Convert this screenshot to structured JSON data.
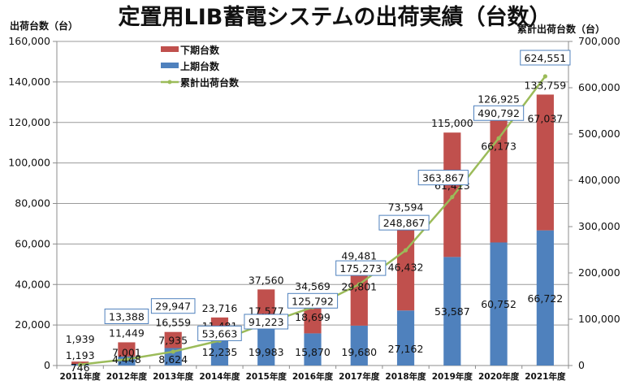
{
  "chart_data": {
    "type": "bar",
    "stacked": true,
    "title": "定置用LIB蓄電システムの出荷実績（台数）",
    "ylabel": "出荷台数（台）",
    "y2label": "累計出荷台数（台）",
    "ylim": [
      0,
      160000
    ],
    "y2lim": [
      0,
      700000
    ],
    "yticks": [
      "0",
      "20,000",
      "40,000",
      "60,000",
      "80,000",
      "100,000",
      "120,000",
      "140,000",
      "160,000"
    ],
    "y2ticks": [
      "0",
      "100,000",
      "200,000",
      "300,000",
      "400,000",
      "500,000",
      "600,000",
      "700,000"
    ],
    "grid": true,
    "legend_position": "top-left",
    "categories": [
      "2011年度",
      "2012年度",
      "2013年度",
      "2014年度",
      "2015年度",
      "2016年度",
      "2017年度",
      "2018年度",
      "2019年度",
      "2020年度",
      "2021年度"
    ],
    "series": [
      {
        "name": "上期台数",
        "type": "bar",
        "axis": "left",
        "color": "#4F81BD",
        "values": [
          746,
          4448,
          8624,
          12235,
          19983,
          15870,
          19680,
          27162,
          53587,
          60752,
          66722
        ],
        "labels": [
          "746",
          "4,448",
          "8,624",
          "12,235",
          "19,983",
          "15,870",
          "19,680",
          "27,162",
          "53,587",
          "60,752",
          "66,722"
        ]
      },
      {
        "name": "下期台数",
        "type": "bar",
        "axis": "left",
        "color": "#C0504D",
        "values": [
          1193,
          7001,
          7935,
          11481,
          17577,
          18699,
          29801,
          46432,
          61413,
          66173,
          67037
        ],
        "labels": [
          "1,193",
          "7,001",
          "7,935",
          "11,481",
          "17,577",
          "18,699",
          "29,801",
          "46,432",
          "61,413",
          "66,173",
          "67,037"
        ]
      },
      {
        "name": "累計出荷台数",
        "type": "line",
        "axis": "right",
        "color": "#9BBB59",
        "values": [
          1939,
          13388,
          29947,
          53663,
          91223,
          125792,
          175273,
          248867,
          363867,
          490792,
          624551
        ],
        "labels": [
          "",
          "13,388",
          "29,947",
          "53,663",
          "91,223",
          "125,792",
          "175,273",
          "248,867",
          "363,867",
          "490,792",
          "624,551"
        ]
      }
    ],
    "totals": [
      1939,
      11449,
      16559,
      23716,
      37560,
      34569,
      49481,
      73594,
      115000,
      126925,
      133759
    ],
    "total_labels": [
      "1,939",
      "11,449",
      "16,559",
      "23,716",
      "37,560",
      "34,569",
      "49,481",
      "73,594",
      "115,000",
      "126,925",
      "133,759"
    ],
    "legend": [
      {
        "name": "下期台数",
        "color": "#C0504D",
        "kind": "bar"
      },
      {
        "name": "上期台数",
        "color": "#4F81BD",
        "kind": "bar"
      },
      {
        "name": "累計出荷台数",
        "color": "#9BBB59",
        "kind": "line"
      }
    ]
  }
}
